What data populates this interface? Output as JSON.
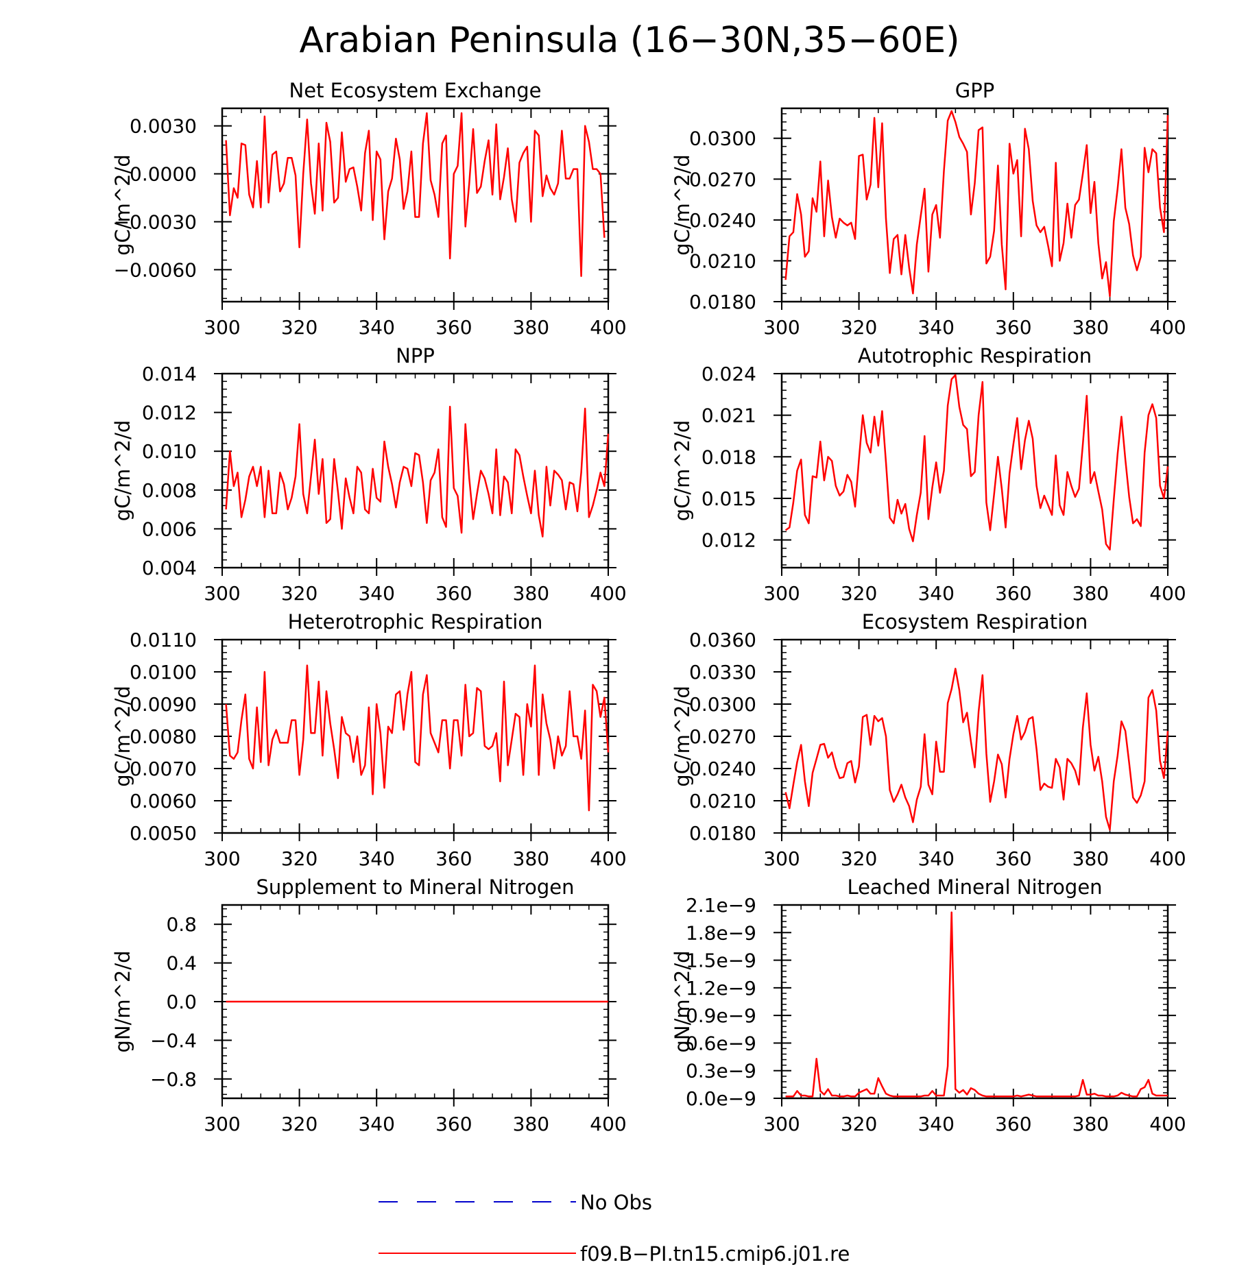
{
  "figure": {
    "title": "Arabian Peninsula (16−30N,35−60E)"
  },
  "series_color": "#ff0000",
  "legend": {
    "items": [
      {
        "label": "No Obs",
        "color": "#0000cc",
        "style": "dashed"
      },
      {
        "label": "f09.B−PI.tn15.cmip6.j01.re",
        "color": "#ff0000",
        "style": "solid"
      }
    ]
  },
  "chart_data": [
    {
      "type": "line",
      "title": "Net Ecosystem Exchange",
      "ylabel": "gC/m^2/d",
      "xlim": [
        300,
        400
      ],
      "ylim": [
        -0.008,
        0.0041
      ],
      "xticks": [
        300,
        320,
        340,
        360,
        380,
        400
      ],
      "xticklabels": [
        "300",
        "320",
        "340",
        "360",
        "380",
        "400"
      ],
      "yticks": [
        0.003,
        0.0,
        -0.003,
        -0.006
      ],
      "yticklabels": [
        "0.0030",
        "0.0000",
        "−0.0030",
        "−0.0060"
      ],
      "x_start": 301,
      "values": [
        0.0021,
        -0.0026,
        -0.0009,
        -0.0015,
        0.0019,
        0.0018,
        -0.0013,
        -0.0021,
        0.0008,
        -0.0021,
        0.0036,
        -0.0018,
        0.0012,
        0.0014,
        -0.0011,
        -0.0006,
        0.001,
        0.001,
        -0.0001,
        -0.0046,
        0.0,
        0.0034,
        -0.0006,
        -0.0025,
        0.0019,
        -0.0023,
        0.0032,
        0.002,
        -0.0018,
        -0.0015,
        0.0026,
        -0.0005,
        0.0003,
        0.0004,
        -0.0008,
        -0.0023,
        0.0013,
        0.0027,
        -0.0029,
        0.0014,
        0.0009,
        -0.0041,
        -0.0011,
        -0.0003,
        0.0022,
        0.0009,
        -0.0022,
        -0.0011,
        0.0014,
        -0.0027,
        -0.0027,
        0.0019,
        0.0038,
        -0.0004,
        -0.0013,
        -0.0027,
        0.0019,
        0.0024,
        -0.0053,
        0.0,
        0.0005,
        0.0038,
        -0.0033,
        -0.0006,
        0.0028,
        -0.0012,
        -0.0008,
        0.0008,
        0.0021,
        -0.0013,
        0.0031,
        -0.0016,
        -0.0002,
        0.0016,
        -0.0016,
        -0.003,
        0.0007,
        0.0013,
        0.0017,
        -0.003,
        0.0027,
        0.0024,
        -0.0014,
        -0.0001,
        -0.0009,
        -0.0013,
        -0.0006,
        0.0027,
        -0.0003,
        -0.0003,
        0.0003,
        0.0003,
        -0.0064,
        0.003,
        0.002,
        0.0003,
        0.0003,
        0.0,
        -0.004
      ]
    },
    {
      "type": "line",
      "title": "GPP",
      "ylabel": "gC/m^2/d",
      "xlim": [
        300,
        400
      ],
      "ylim": [
        0.018,
        0.0322
      ],
      "xticks": [
        300,
        320,
        340,
        360,
        380,
        400
      ],
      "xticklabels": [
        "300",
        "320",
        "340",
        "360",
        "380",
        "400"
      ],
      "yticks": [
        0.03,
        0.027,
        0.024,
        0.021,
        0.018
      ],
      "yticklabels": [
        "0.0300",
        "0.0270",
        "0.0240",
        "0.0210",
        "0.0180"
      ],
      "x_start": 301,
      "values": [
        0.0196,
        0.0228,
        0.0231,
        0.0259,
        0.0244,
        0.0213,
        0.0217,
        0.0256,
        0.0246,
        0.0283,
        0.0228,
        0.0269,
        0.0242,
        0.0227,
        0.0241,
        0.0238,
        0.0236,
        0.0238,
        0.0226,
        0.0287,
        0.0288,
        0.0255,
        0.0266,
        0.0315,
        0.0264,
        0.0311,
        0.0241,
        0.0201,
        0.0226,
        0.0229,
        0.02,
        0.0229,
        0.0205,
        0.0186,
        0.0222,
        0.0243,
        0.0263,
        0.0202,
        0.0244,
        0.0251,
        0.0227,
        0.0276,
        0.0313,
        0.032,
        0.0312,
        0.0301,
        0.0296,
        0.029,
        0.0244,
        0.0267,
        0.0306,
        0.0308,
        0.0208,
        0.0213,
        0.0232,
        0.028,
        0.0222,
        0.0189,
        0.0296,
        0.0274,
        0.0284,
        0.0228,
        0.0307,
        0.0292,
        0.0254,
        0.0236,
        0.0231,
        0.0235,
        0.0221,
        0.0206,
        0.0282,
        0.021,
        0.0223,
        0.0252,
        0.0227,
        0.0251,
        0.0255,
        0.0274,
        0.0295,
        0.0245,
        0.0268,
        0.0223,
        0.0197,
        0.0209,
        0.0184,
        0.0239,
        0.0263,
        0.0292,
        0.0249,
        0.0237,
        0.0214,
        0.0203,
        0.0213,
        0.0293,
        0.0275,
        0.0292,
        0.0289,
        0.0249,
        0.0231,
        0.0317
      ]
    },
    {
      "type": "line",
      "title": "NPP",
      "ylabel": "gC/m^2/d",
      "xlim": [
        300,
        400
      ],
      "ylim": [
        0.004,
        0.014
      ],
      "xticks": [
        300,
        320,
        340,
        360,
        380,
        400
      ],
      "xticklabels": [
        "300",
        "320",
        "340",
        "360",
        "380",
        "400"
      ],
      "yticks": [
        0.014,
        0.012,
        0.01,
        0.008,
        0.006,
        0.004
      ],
      "yticklabels": [
        "0.014",
        "0.012",
        "0.010",
        "0.008",
        "0.006",
        "0.004"
      ],
      "x_start": 301,
      "values": [
        0.007,
        0.01,
        0.0082,
        0.0089,
        0.0066,
        0.0075,
        0.0087,
        0.0092,
        0.0082,
        0.0092,
        0.0066,
        0.009,
        0.0068,
        0.0068,
        0.0089,
        0.0083,
        0.007,
        0.0076,
        0.0087,
        0.0114,
        0.0078,
        0.0068,
        0.0087,
        0.0106,
        0.0078,
        0.0096,
        0.0063,
        0.0065,
        0.0096,
        0.0079,
        0.006,
        0.0086,
        0.0076,
        0.0068,
        0.0092,
        0.0089,
        0.007,
        0.0068,
        0.0091,
        0.0076,
        0.0074,
        0.0105,
        0.0092,
        0.0083,
        0.0071,
        0.0084,
        0.0092,
        0.0091,
        0.0082,
        0.0099,
        0.0098,
        0.0084,
        0.0063,
        0.0085,
        0.0089,
        0.0101,
        0.0066,
        0.0061,
        0.0123,
        0.0081,
        0.0077,
        0.0058,
        0.0114,
        0.0086,
        0.0065,
        0.0078,
        0.009,
        0.0086,
        0.0078,
        0.0068,
        0.0101,
        0.0067,
        0.0087,
        0.0084,
        0.0068,
        0.0101,
        0.0098,
        0.0087,
        0.0077,
        0.0068,
        0.009,
        0.0067,
        0.0056,
        0.0092,
        0.0072,
        0.009,
        0.0088,
        0.0085,
        0.007,
        0.0084,
        0.0083,
        0.0069,
        0.0089,
        0.0122,
        0.0066,
        0.0072,
        0.008,
        0.0089,
        0.0082,
        0.0109
      ]
    },
    {
      "type": "line",
      "title": "Autotrophic Respiration",
      "ylabel": "gC/m^2/d",
      "xlim": [
        300,
        400
      ],
      "ylim": [
        0.01,
        0.024
      ],
      "xticks": [
        300,
        320,
        340,
        360,
        380,
        400
      ],
      "xticklabels": [
        "300",
        "320",
        "340",
        "360",
        "380",
        "400"
      ],
      "yticks": [
        0.024,
        0.021,
        0.018,
        0.015,
        0.012
      ],
      "yticklabels": [
        "0.024",
        "0.021",
        "0.018",
        "0.015",
        "0.012"
      ],
      "x_start": 301,
      "values": [
        0.0127,
        0.0129,
        0.0147,
        0.017,
        0.0178,
        0.0138,
        0.0132,
        0.0166,
        0.0165,
        0.0191,
        0.0163,
        0.018,
        0.0177,
        0.0159,
        0.0152,
        0.0155,
        0.0167,
        0.0162,
        0.0144,
        0.0178,
        0.021,
        0.019,
        0.0183,
        0.0209,
        0.0188,
        0.0213,
        0.0176,
        0.0136,
        0.0132,
        0.0149,
        0.0139,
        0.0146,
        0.0128,
        0.0119,
        0.0138,
        0.0154,
        0.0195,
        0.0135,
        0.0158,
        0.0176,
        0.0154,
        0.017,
        0.0217,
        0.0236,
        0.0239,
        0.0216,
        0.0203,
        0.02,
        0.0166,
        0.0169,
        0.021,
        0.0234,
        0.0147,
        0.0127,
        0.0153,
        0.018,
        0.0157,
        0.0129,
        0.0168,
        0.0189,
        0.0208,
        0.0171,
        0.0192,
        0.0206,
        0.0193,
        0.0159,
        0.0143,
        0.0152,
        0.0145,
        0.0138,
        0.0181,
        0.0145,
        0.0138,
        0.0169,
        0.0159,
        0.0151,
        0.0157,
        0.0189,
        0.0224,
        0.0161,
        0.0169,
        0.0155,
        0.0142,
        0.0117,
        0.0113,
        0.0149,
        0.0182,
        0.0209,
        0.0178,
        0.0151,
        0.0132,
        0.0135,
        0.013,
        0.0183,
        0.021,
        0.0218,
        0.0208,
        0.0159,
        0.015,
        0.0173
      ]
    },
    {
      "type": "line",
      "title": "Heterotrophic Respiration",
      "ylabel": "gC/m^2/d",
      "xlim": [
        300,
        400
      ],
      "ylim": [
        0.005,
        0.011
      ],
      "xticks": [
        300,
        320,
        340,
        360,
        380,
        400
      ],
      "xticklabels": [
        "300",
        "320",
        "340",
        "360",
        "380",
        "400"
      ],
      "yticks": [
        0.011,
        0.01,
        0.009,
        0.008,
        0.007,
        0.006,
        0.005
      ],
      "yticklabels": [
        "0.0110",
        "0.0100",
        "0.0090",
        "0.0080",
        "0.0070",
        "0.0060",
        "0.0050"
      ],
      "x_start": 301,
      "values": [
        0.009,
        0.0074,
        0.0073,
        0.0075,
        0.0085,
        0.0093,
        0.0073,
        0.007,
        0.0089,
        0.0072,
        0.01,
        0.0071,
        0.0079,
        0.0082,
        0.0078,
        0.0078,
        0.0078,
        0.0085,
        0.0085,
        0.0068,
        0.0079,
        0.0102,
        0.0081,
        0.0081,
        0.0097,
        0.0074,
        0.0094,
        0.0084,
        0.0076,
        0.0067,
        0.0086,
        0.0081,
        0.008,
        0.0072,
        0.008,
        0.0068,
        0.0071,
        0.0089,
        0.0062,
        0.009,
        0.0081,
        0.0064,
        0.0083,
        0.0081,
        0.0093,
        0.0094,
        0.0082,
        0.0093,
        0.01,
        0.0072,
        0.0071,
        0.0093,
        0.0099,
        0.0081,
        0.0078,
        0.0075,
        0.0085,
        0.0085,
        0.007,
        0.0085,
        0.0085,
        0.0074,
        0.0096,
        0.008,
        0.0081,
        0.0095,
        0.0094,
        0.0077,
        0.0076,
        0.0077,
        0.0081,
        0.0066,
        0.0097,
        0.0071,
        0.0079,
        0.0087,
        0.0086,
        0.0068,
        0.009,
        0.0083,
        0.0102,
        0.0068,
        0.0093,
        0.0084,
        0.0079,
        0.007,
        0.008,
        0.0074,
        0.0077,
        0.0094,
        0.008,
        0.008,
        0.0073,
        0.0088,
        0.0057,
        0.0096,
        0.0094,
        0.0086,
        0.0092,
        0.0075
      ]
    },
    {
      "type": "line",
      "title": "Ecosystem Respiration",
      "ylabel": "gC/m^2/d",
      "xlim": [
        300,
        400
      ],
      "ylim": [
        0.018,
        0.036
      ],
      "xticks": [
        300,
        320,
        340,
        360,
        380,
        400
      ],
      "xticklabels": [
        "300",
        "320",
        "340",
        "360",
        "380",
        "400"
      ],
      "yticks": [
        0.036,
        0.033,
        0.03,
        0.027,
        0.024,
        0.021,
        0.018
      ],
      "yticklabels": [
        "0.0360",
        "0.0330",
        "0.0300",
        "0.0270",
        "0.0240",
        "0.0210",
        "0.0180"
      ],
      "x_start": 301,
      "values": [
        0.0218,
        0.0203,
        0.0225,
        0.0246,
        0.0262,
        0.0228,
        0.0205,
        0.0236,
        0.0249,
        0.0262,
        0.0263,
        0.025,
        0.0255,
        0.0241,
        0.0231,
        0.0232,
        0.0245,
        0.0247,
        0.0227,
        0.0242,
        0.0288,
        0.029,
        0.0262,
        0.0289,
        0.0284,
        0.0287,
        0.027,
        0.022,
        0.0209,
        0.0216,
        0.0225,
        0.0213,
        0.0205,
        0.019,
        0.0211,
        0.0223,
        0.0272,
        0.0225,
        0.0216,
        0.0265,
        0.0237,
        0.0237,
        0.0301,
        0.0314,
        0.0333,
        0.0313,
        0.0283,
        0.0292,
        0.0265,
        0.0241,
        0.0293,
        0.0327,
        0.0254,
        0.0209,
        0.0228,
        0.0253,
        0.0244,
        0.0213,
        0.0249,
        0.0272,
        0.0289,
        0.0267,
        0.0274,
        0.0286,
        0.0288,
        0.0258,
        0.022,
        0.0226,
        0.0223,
        0.0222,
        0.0249,
        0.0241,
        0.0211,
        0.0249,
        0.0245,
        0.0238,
        0.0225,
        0.0278,
        0.031,
        0.0262,
        0.0238,
        0.0251,
        0.0228,
        0.0195,
        0.0183,
        0.0228,
        0.0252,
        0.0284,
        0.0275,
        0.0245,
        0.0213,
        0.0208,
        0.0215,
        0.0228,
        0.0306,
        0.0313,
        0.0294,
        0.0247,
        0.0231,
        0.0275
      ]
    },
    {
      "type": "line",
      "title": "Supplement to Mineral Nitrogen",
      "ylabel": "gN/m^2/d",
      "xlim": [
        300,
        400
      ],
      "ylim": [
        -1.0,
        1.0
      ],
      "xticks": [
        300,
        320,
        340,
        360,
        380,
        400
      ],
      "xticklabels": [
        "300",
        "320",
        "340",
        "360",
        "380",
        "400"
      ],
      "yticks": [
        0.8,
        0.4,
        0.0,
        -0.4,
        -0.8
      ],
      "yticklabels": [
        "0.8",
        "0.4",
        "0.0",
        "−0.4",
        "−0.8"
      ],
      "x_start": 301,
      "values": [
        0,
        0,
        0,
        0,
        0,
        0,
        0,
        0,
        0,
        0,
        0,
        0,
        0,
        0,
        0,
        0,
        0,
        0,
        0,
        0,
        0,
        0,
        0,
        0,
        0,
        0,
        0,
        0,
        0,
        0,
        0,
        0,
        0,
        0,
        0,
        0,
        0,
        0,
        0,
        0,
        0,
        0,
        0,
        0,
        0,
        0,
        0,
        0,
        0,
        0,
        0,
        0,
        0,
        0,
        0,
        0,
        0,
        0,
        0,
        0,
        0,
        0,
        0,
        0,
        0,
        0,
        0,
        0,
        0,
        0,
        0,
        0,
        0,
        0,
        0,
        0,
        0,
        0,
        0,
        0,
        0,
        0,
        0,
        0,
        0,
        0,
        0,
        0,
        0,
        0,
        0,
        0,
        0,
        0,
        0,
        0,
        0,
        0,
        0,
        0
      ]
    },
    {
      "type": "line",
      "title": "Leached Mineral Nitrogen",
      "ylabel": "gN/m^2/d",
      "xlim": [
        300,
        400
      ],
      "ylim": [
        0.0,
        2.1
      ],
      "xticks": [
        300,
        320,
        340,
        360,
        380,
        400
      ],
      "xticklabels": [
        "300",
        "320",
        "340",
        "360",
        "380",
        "400"
      ],
      "yticks": [
        2.1,
        1.8,
        1.5,
        1.2,
        0.9,
        0.6,
        0.3,
        0.0
      ],
      "yticklabels": [
        "2.1e−9",
        "1.8e−9",
        "1.5e−9",
        "1.2e−9",
        "0.9e−9",
        "0.6e−9",
        "0.3e−9",
        "0.0e−9"
      ],
      "units_note": "values in units of 1e-9",
      "x_start": 301,
      "values": [
        0.02,
        0.02,
        0.02,
        0.08,
        0.03,
        0.03,
        0.02,
        0.02,
        0.43,
        0.08,
        0.04,
        0.1,
        0.03,
        0.03,
        0.02,
        0.02,
        0.03,
        0.02,
        0.02,
        0.06,
        0.08,
        0.1,
        0.05,
        0.05,
        0.22,
        0.13,
        0.05,
        0.03,
        0.02,
        0.02,
        0.02,
        0.02,
        0.02,
        0.02,
        0.02,
        0.02,
        0.03,
        0.03,
        0.08,
        0.03,
        0.03,
        0.03,
        0.35,
        2.02,
        0.1,
        0.06,
        0.09,
        0.04,
        0.11,
        0.09,
        0.05,
        0.03,
        0.02,
        0.02,
        0.02,
        0.02,
        0.02,
        0.02,
        0.02,
        0.02,
        0.03,
        0.02,
        0.03,
        0.04,
        0.03,
        0.02,
        0.02,
        0.02,
        0.02,
        0.02,
        0.02,
        0.02,
        0.02,
        0.02,
        0.02,
        0.02,
        0.03,
        0.2,
        0.04,
        0.04,
        0.05,
        0.03,
        0.03,
        0.02,
        0.02,
        0.02,
        0.03,
        0.06,
        0.04,
        0.03,
        0.02,
        0.02,
        0.1,
        0.12,
        0.2,
        0.05,
        0.03,
        0.03,
        0.03,
        0.03
      ]
    }
  ]
}
